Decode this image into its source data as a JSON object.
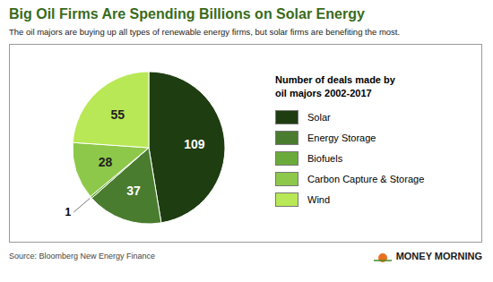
{
  "chart_data": {
    "type": "pie",
    "title": "Big Oil Firms Are Spending Billions on Solar Energy",
    "subtitle": "The oil majors are buying up all types of renewable energy firms, but solar firms are benefiting the most.",
    "categories": [
      "Solar",
      "Energy Storage",
      "Biofuels",
      "Carbon Capture & Storage",
      "Wind"
    ],
    "values": [
      109,
      37,
      1,
      28,
      55
    ],
    "colors": [
      "#1e3d10",
      "#4a7c2f",
      "#6aaa3a",
      "#8dc84a",
      "#b8e855"
    ],
    "data_labels": true,
    "legend": "right",
    "legend_title": "Number of deals made by\noil majors 2002-2017",
    "source": "Source: Bloomberg New Energy Finance",
    "annotations": [
      "MONEY MORNING"
    ]
  }
}
